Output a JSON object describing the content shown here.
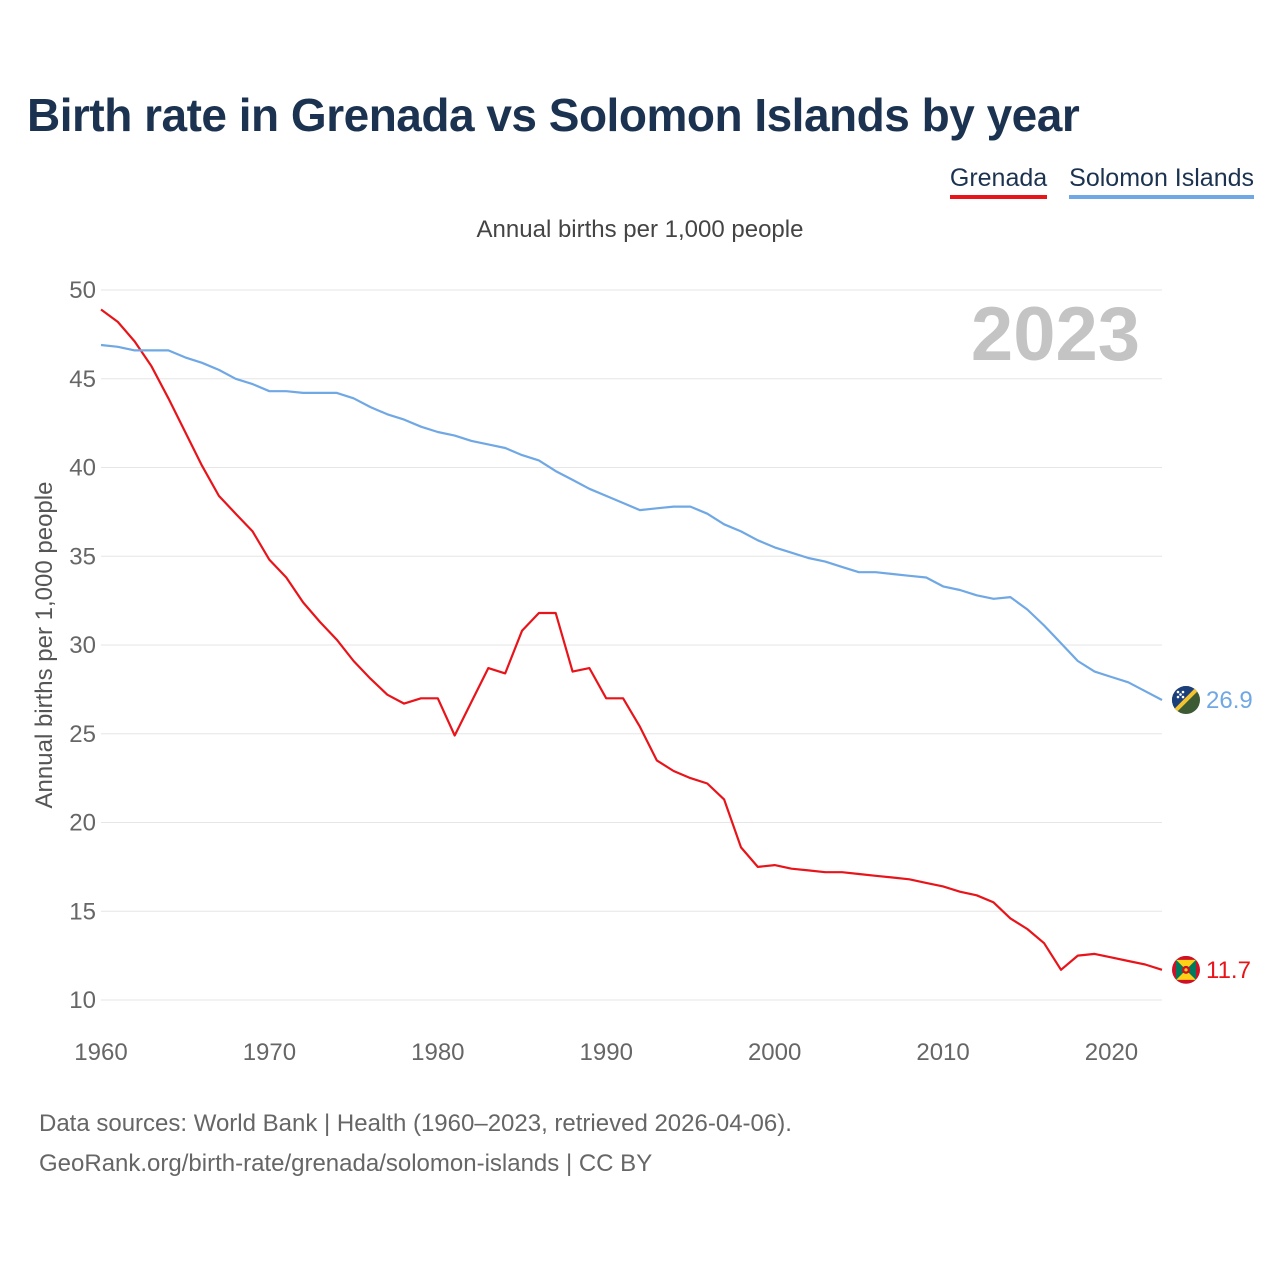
{
  "title": "Birth rate in Grenada vs Solomon Islands by year",
  "subtitle": "Annual births per 1,000 people",
  "footer": {
    "line1": "Data sources: World Bank | Health (1960–2023, retrieved 2026-04-06).",
    "line2": "GeoRank.org/birth-rate/grenada/solomon-islands | CC BY"
  },
  "colors": {
    "grenada": "#e8141a",
    "solomon": "#6fa8e4",
    "grid": "#e6e6e6"
  },
  "chart_data": {
    "type": "line",
    "title": "Birth rate in Grenada vs Solomon Islands by year",
    "subtitle": "Annual births per 1,000 people",
    "ylabel": "Annual births per 1,000 people",
    "xlabel": "",
    "year_watermark": "2023",
    "xlim": [
      1960,
      2023
    ],
    "ylim": [
      10,
      50
    ],
    "xticks": [
      1960,
      1970,
      1980,
      1990,
      2000,
      2010,
      2020
    ],
    "yticks": [
      10,
      15,
      20,
      25,
      30,
      35,
      40,
      45,
      50
    ],
    "grid": true,
    "legend_position": "top-right",
    "x": [
      1960,
      1961,
      1962,
      1963,
      1964,
      1965,
      1966,
      1967,
      1968,
      1969,
      1970,
      1971,
      1972,
      1973,
      1974,
      1975,
      1976,
      1977,
      1978,
      1979,
      1980,
      1981,
      1982,
      1983,
      1984,
      1985,
      1986,
      1987,
      1988,
      1989,
      1990,
      1991,
      1992,
      1993,
      1994,
      1995,
      1996,
      1997,
      1998,
      1999,
      2000,
      2001,
      2002,
      2003,
      2004,
      2005,
      2006,
      2007,
      2008,
      2009,
      2010,
      2011,
      2012,
      2013,
      2014,
      2015,
      2016,
      2017,
      2018,
      2019,
      2020,
      2021,
      2022,
      2023
    ],
    "series": [
      {
        "name": "Grenada",
        "color": "#e8141a",
        "end_label": "11.7",
        "values": [
          48.9,
          48.2,
          47.1,
          45.7,
          43.9,
          42.0,
          40.1,
          38.4,
          37.4,
          36.4,
          34.8,
          33.8,
          32.4,
          31.3,
          30.3,
          29.1,
          28.1,
          27.2,
          26.7,
          27.0,
          27.0,
          24.9,
          26.8,
          28.7,
          28.4,
          30.8,
          31.8,
          31.8,
          28.5,
          28.7,
          27.0,
          27.0,
          25.4,
          23.5,
          22.9,
          22.5,
          22.2,
          21.3,
          18.6,
          17.5,
          17.6,
          17.4,
          17.3,
          17.2,
          17.2,
          17.1,
          17.0,
          16.9,
          16.8,
          16.6,
          16.4,
          16.1,
          15.9,
          15.5,
          14.6,
          14.0,
          13.2,
          11.7,
          12.5,
          12.6,
          12.4,
          12.2,
          12.0,
          11.7
        ]
      },
      {
        "name": "Solomon Islands",
        "color": "#6fa8e4",
        "end_label": "26.9",
        "values": [
          46.9,
          46.8,
          46.6,
          46.6,
          46.6,
          46.2,
          45.9,
          45.5,
          45.0,
          44.7,
          44.3,
          44.3,
          44.2,
          44.2,
          44.2,
          43.9,
          43.4,
          43.0,
          42.7,
          42.3,
          42.0,
          41.8,
          41.5,
          41.3,
          41.1,
          40.7,
          40.4,
          39.8,
          39.3,
          38.8,
          38.4,
          38.0,
          37.6,
          37.7,
          37.8,
          37.8,
          37.4,
          36.8,
          36.4,
          35.9,
          35.5,
          35.2,
          34.9,
          34.7,
          34.4,
          34.1,
          34.1,
          34.0,
          33.9,
          33.8,
          33.3,
          33.1,
          32.8,
          32.6,
          32.7,
          32.0,
          31.1,
          30.1,
          29.1,
          28.5,
          28.2,
          27.9,
          27.4,
          26.9
        ]
      }
    ]
  }
}
